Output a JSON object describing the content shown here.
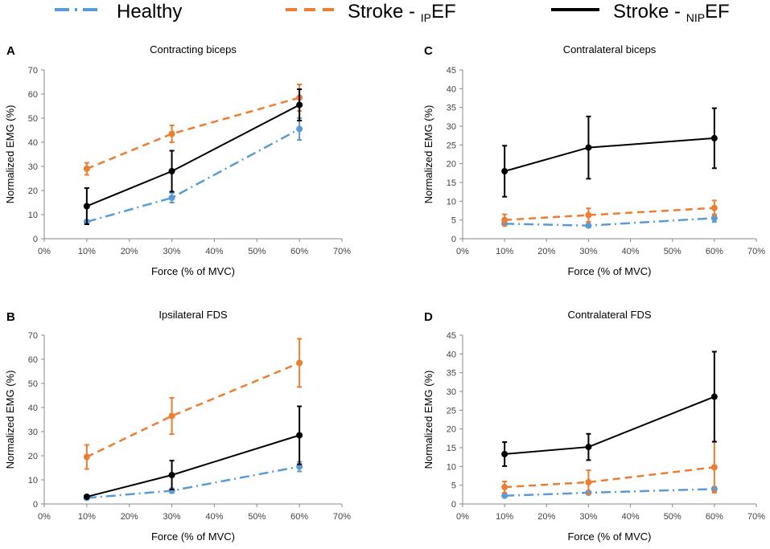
{
  "legend": {
    "items": [
      {
        "series": "healthy",
        "label": "Healthy",
        "sub": "",
        "suffix": ""
      },
      {
        "series": "ipef",
        "label": "Stroke - ",
        "sub": "IP",
        "suffix": "EF"
      },
      {
        "series": "nipef",
        "label": "Stroke - ",
        "sub": "NIP",
        "suffix": "EF"
      }
    ]
  },
  "styles": {
    "healthy": {
      "color": "#5b9bd5",
      "dash": "dashdot"
    },
    "ipef": {
      "color": "#ed7d31",
      "dash": "dash"
    },
    "nipef": {
      "color": "#000000",
      "dash": "solid"
    }
  },
  "chart_data": [
    {
      "type": "line",
      "panel": "A",
      "title": "Contracting biceps",
      "xlabel": "Force (% of MVC)",
      "ylabel": "Normalized EMG (%)",
      "xlim": [
        0,
        70
      ],
      "xticks": [
        0,
        10,
        20,
        30,
        40,
        50,
        60,
        70
      ],
      "xtick_labels": [
        "0%",
        "10%",
        "20%",
        "30%",
        "40%",
        "50%",
        "60%",
        "70%"
      ],
      "ylim": [
        0,
        70
      ],
      "yticks": [
        0,
        10,
        20,
        30,
        40,
        50,
        60,
        70
      ],
      "x": [
        10,
        30,
        60
      ],
      "series": [
        {
          "id": "healthy",
          "name": "Healthy",
          "values": [
            7,
            17,
            45.5
          ],
          "errors": [
            0.8,
            2,
            4.5
          ]
        },
        {
          "id": "ipef",
          "name": "Stroke - IPEF",
          "values": [
            29,
            43.5,
            58.5
          ],
          "errors": [
            2.5,
            3.5,
            5.5
          ]
        },
        {
          "id": "nipef",
          "name": "Stroke - NIPEF",
          "values": [
            13.5,
            28,
            55.5
          ],
          "errors": [
            7.5,
            8.5,
            6.5
          ]
        }
      ]
    },
    {
      "type": "line",
      "panel": "B",
      "title": "Ipsilateral FDS",
      "xlabel": "Force (% of MVC)",
      "ylabel": "Normalized EMG (%)",
      "xlim": [
        0,
        70
      ],
      "xticks": [
        0,
        10,
        20,
        30,
        40,
        50,
        60,
        70
      ],
      "xtick_labels": [
        "0%",
        "10%",
        "20%",
        "30%",
        "40%",
        "50%",
        "60%",
        "70%"
      ],
      "ylim": [
        0,
        70
      ],
      "yticks": [
        0,
        10,
        20,
        30,
        40,
        50,
        60,
        70
      ],
      "x": [
        10,
        30,
        60
      ],
      "series": [
        {
          "id": "healthy",
          "name": "Healthy",
          "values": [
            2.5,
            5.5,
            15.5
          ],
          "errors": [
            0.5,
            1,
            2
          ]
        },
        {
          "id": "ipef",
          "name": "Stroke - IPEF",
          "values": [
            19.5,
            36.5,
            58.5
          ],
          "errors": [
            5,
            7.5,
            10
          ]
        },
        {
          "id": "nipef",
          "name": "Stroke - NIPEF",
          "values": [
            3,
            12,
            28.5
          ],
          "errors": [
            0.5,
            6,
            12
          ]
        }
      ]
    },
    {
      "type": "line",
      "panel": "C",
      "title": "Contralateral biceps",
      "xlabel": "Force (% of MVC)",
      "ylabel": "Normalized EMG (%)",
      "xlim": [
        0,
        70
      ],
      "xticks": [
        0,
        10,
        20,
        30,
        40,
        50,
        60,
        70
      ],
      "xtick_labels": [
        "0%",
        "10%",
        "20%",
        "30%",
        "40%",
        "50%",
        "60%",
        "70%"
      ],
      "ylim": [
        0,
        45
      ],
      "yticks": [
        0,
        5,
        10,
        15,
        20,
        25,
        30,
        35,
        40,
        45
      ],
      "x": [
        10,
        30,
        60
      ],
      "series": [
        {
          "id": "healthy",
          "name": "Healthy",
          "values": [
            4,
            3.5,
            5.5
          ],
          "errors": [
            0.5,
            0.5,
            1
          ]
        },
        {
          "id": "ipef",
          "name": "Stroke - IPEF",
          "values": [
            5,
            6.3,
            8.2
          ],
          "errors": [
            1.5,
            1.8,
            2
          ]
        },
        {
          "id": "nipef",
          "name": "Stroke - NIPEF",
          "values": [
            18,
            24.3,
            26.8
          ],
          "errors": [
            6.8,
            8.3,
            8
          ]
        }
      ]
    },
    {
      "type": "line",
      "panel": "D",
      "title": "Contralateral FDS",
      "xlabel": "Force (% of MVC)",
      "ylabel": "Normalized EMG (%)",
      "xlim": [
        0,
        70
      ],
      "xticks": [
        0,
        10,
        20,
        30,
        40,
        50,
        60,
        70
      ],
      "xtick_labels": [
        "0%",
        "10%",
        "20%",
        "30%",
        "40%",
        "50%",
        "60%",
        "70%"
      ],
      "ylim": [
        0,
        45
      ],
      "yticks": [
        0,
        5,
        10,
        15,
        20,
        25,
        30,
        35,
        40,
        45
      ],
      "x": [
        10,
        30,
        60
      ],
      "series": [
        {
          "id": "healthy",
          "name": "Healthy",
          "values": [
            2.2,
            3,
            4
          ],
          "errors": [
            0.3,
            0.4,
            0.6
          ]
        },
        {
          "id": "ipef",
          "name": "Stroke - IPEF",
          "values": [
            4.5,
            5.8,
            9.8
          ],
          "errors": [
            1.5,
            3.2,
            6.8
          ]
        },
        {
          "id": "nipef",
          "name": "Stroke - NIPEF",
          "values": [
            13.3,
            15.2,
            28.6
          ],
          "errors": [
            3.2,
            3.5,
            12
          ]
        }
      ]
    }
  ]
}
